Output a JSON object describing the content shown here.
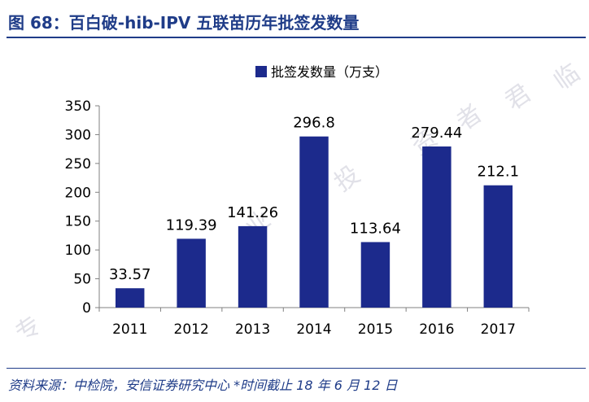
{
  "figure": {
    "title": "图 68：百白破-hib-IPV 五联苗历年批签发数量",
    "source": "资料来源：中检院，安信证券研究中心   *时间截止 18 年 6 月 12 日",
    "watermark": [
      "专",
      "业",
      "投",
      "资",
      "者",
      "君",
      "临"
    ]
  },
  "chart_data": {
    "type": "bar",
    "categories": [
      "2011",
      "2012",
      "2013",
      "2014",
      "2015",
      "2016",
      "2017"
    ],
    "series": [
      {
        "name": "批签发数量（万支）",
        "values": [
          33.57,
          119.39,
          141.26,
          296.8,
          113.64,
          279.44,
          212.1
        ],
        "color": "#1c2a8c"
      }
    ],
    "data_labels": [
      "33.57",
      "119.39",
      "141.26",
      "296.8",
      "113.64",
      "279.44",
      "212.1"
    ],
    "ylim": [
      0,
      350
    ],
    "yticks": [
      0,
      50,
      100,
      150,
      200,
      250,
      300,
      350
    ],
    "grid": false,
    "legend_position": "top-center"
  }
}
